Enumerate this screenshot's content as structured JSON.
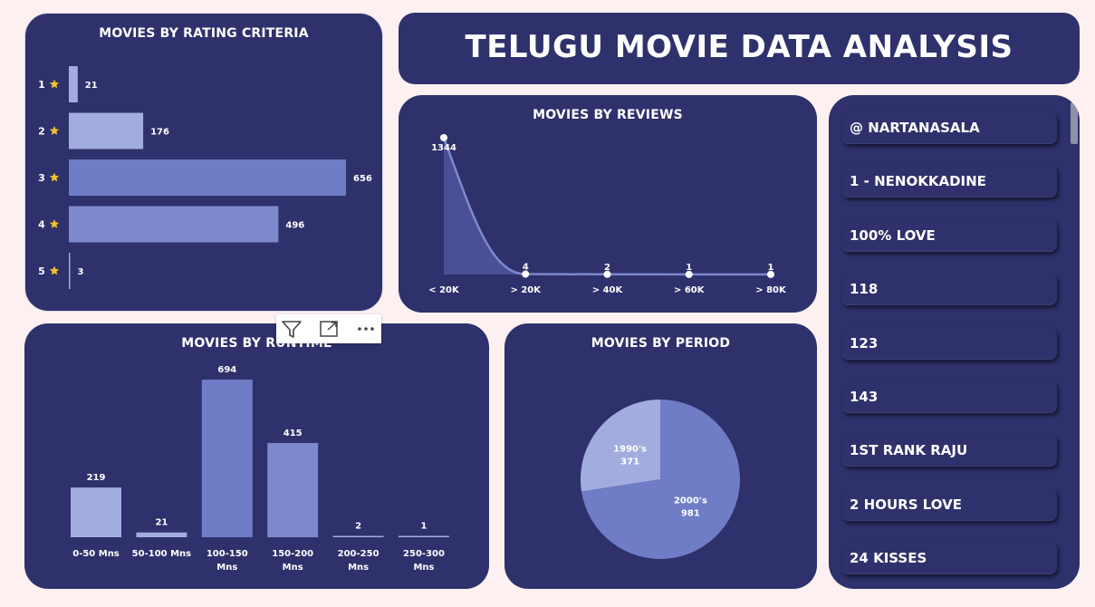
{
  "dashboard": {
    "title": "TELUGU MOVIE DATA ANALYSIS"
  },
  "rating_panel": {
    "title": "MOVIES BY RATING CRITERIA",
    "star_icon": "star-icon",
    "star_color": "#f2c12e"
  },
  "reviews_panel": {
    "title": "MOVIES BY REVIEWS"
  },
  "runtime_panel": {
    "title": "MOVIES BY RUNTIME"
  },
  "period_panel": {
    "title": "MOVIES BY PERIOD"
  },
  "visual_toolbar": {
    "icons": [
      "filter-icon",
      "focus-mode-icon",
      "more-options-icon"
    ]
  },
  "movie_list": {
    "items": [
      "@ NARTANASALA",
      "1 - NENOKKADINE",
      "100% LOVE",
      "118",
      "123",
      "143",
      "1ST RANK RAJU",
      "2 HOURS LOVE",
      "24 KISSES"
    ]
  },
  "colors": {
    "background": "#fdf0f0",
    "panel": "#2e316b",
    "bar_light": "#a3acdf",
    "bar_mid": "#7e89cd",
    "bar_dark": "#6f7cc6",
    "line": "#7e89cd",
    "area": "#4a4f96"
  },
  "chart_data": [
    {
      "type": "bar",
      "orientation": "horizontal",
      "title": "MOVIES BY RATING CRITERIA",
      "categories": [
        "1",
        "2",
        "3",
        "4",
        "5"
      ],
      "values": [
        21,
        176,
        656,
        496,
        3
      ]
    },
    {
      "type": "area",
      "title": "MOVIES BY REVIEWS",
      "categories": [
        "< 20K",
        "> 20K",
        "> 40K",
        "> 60K",
        "> 80K"
      ],
      "values": [
        1344,
        4,
        2,
        1,
        1
      ]
    },
    {
      "type": "bar",
      "title": "MOVIES BY RUNTIME",
      "categories": [
        "0-50 Mns",
        "50-100 Mns",
        "100-150 Mns",
        "150-200 Mns",
        "200-250 Mns",
        "250-300 Mns"
      ],
      "values": [
        219,
        21,
        694,
        415,
        2,
        1
      ]
    },
    {
      "type": "pie",
      "title": "MOVIES BY PERIOD",
      "categories": [
        "2000's",
        "1990's"
      ],
      "values": [
        981,
        371
      ]
    }
  ]
}
